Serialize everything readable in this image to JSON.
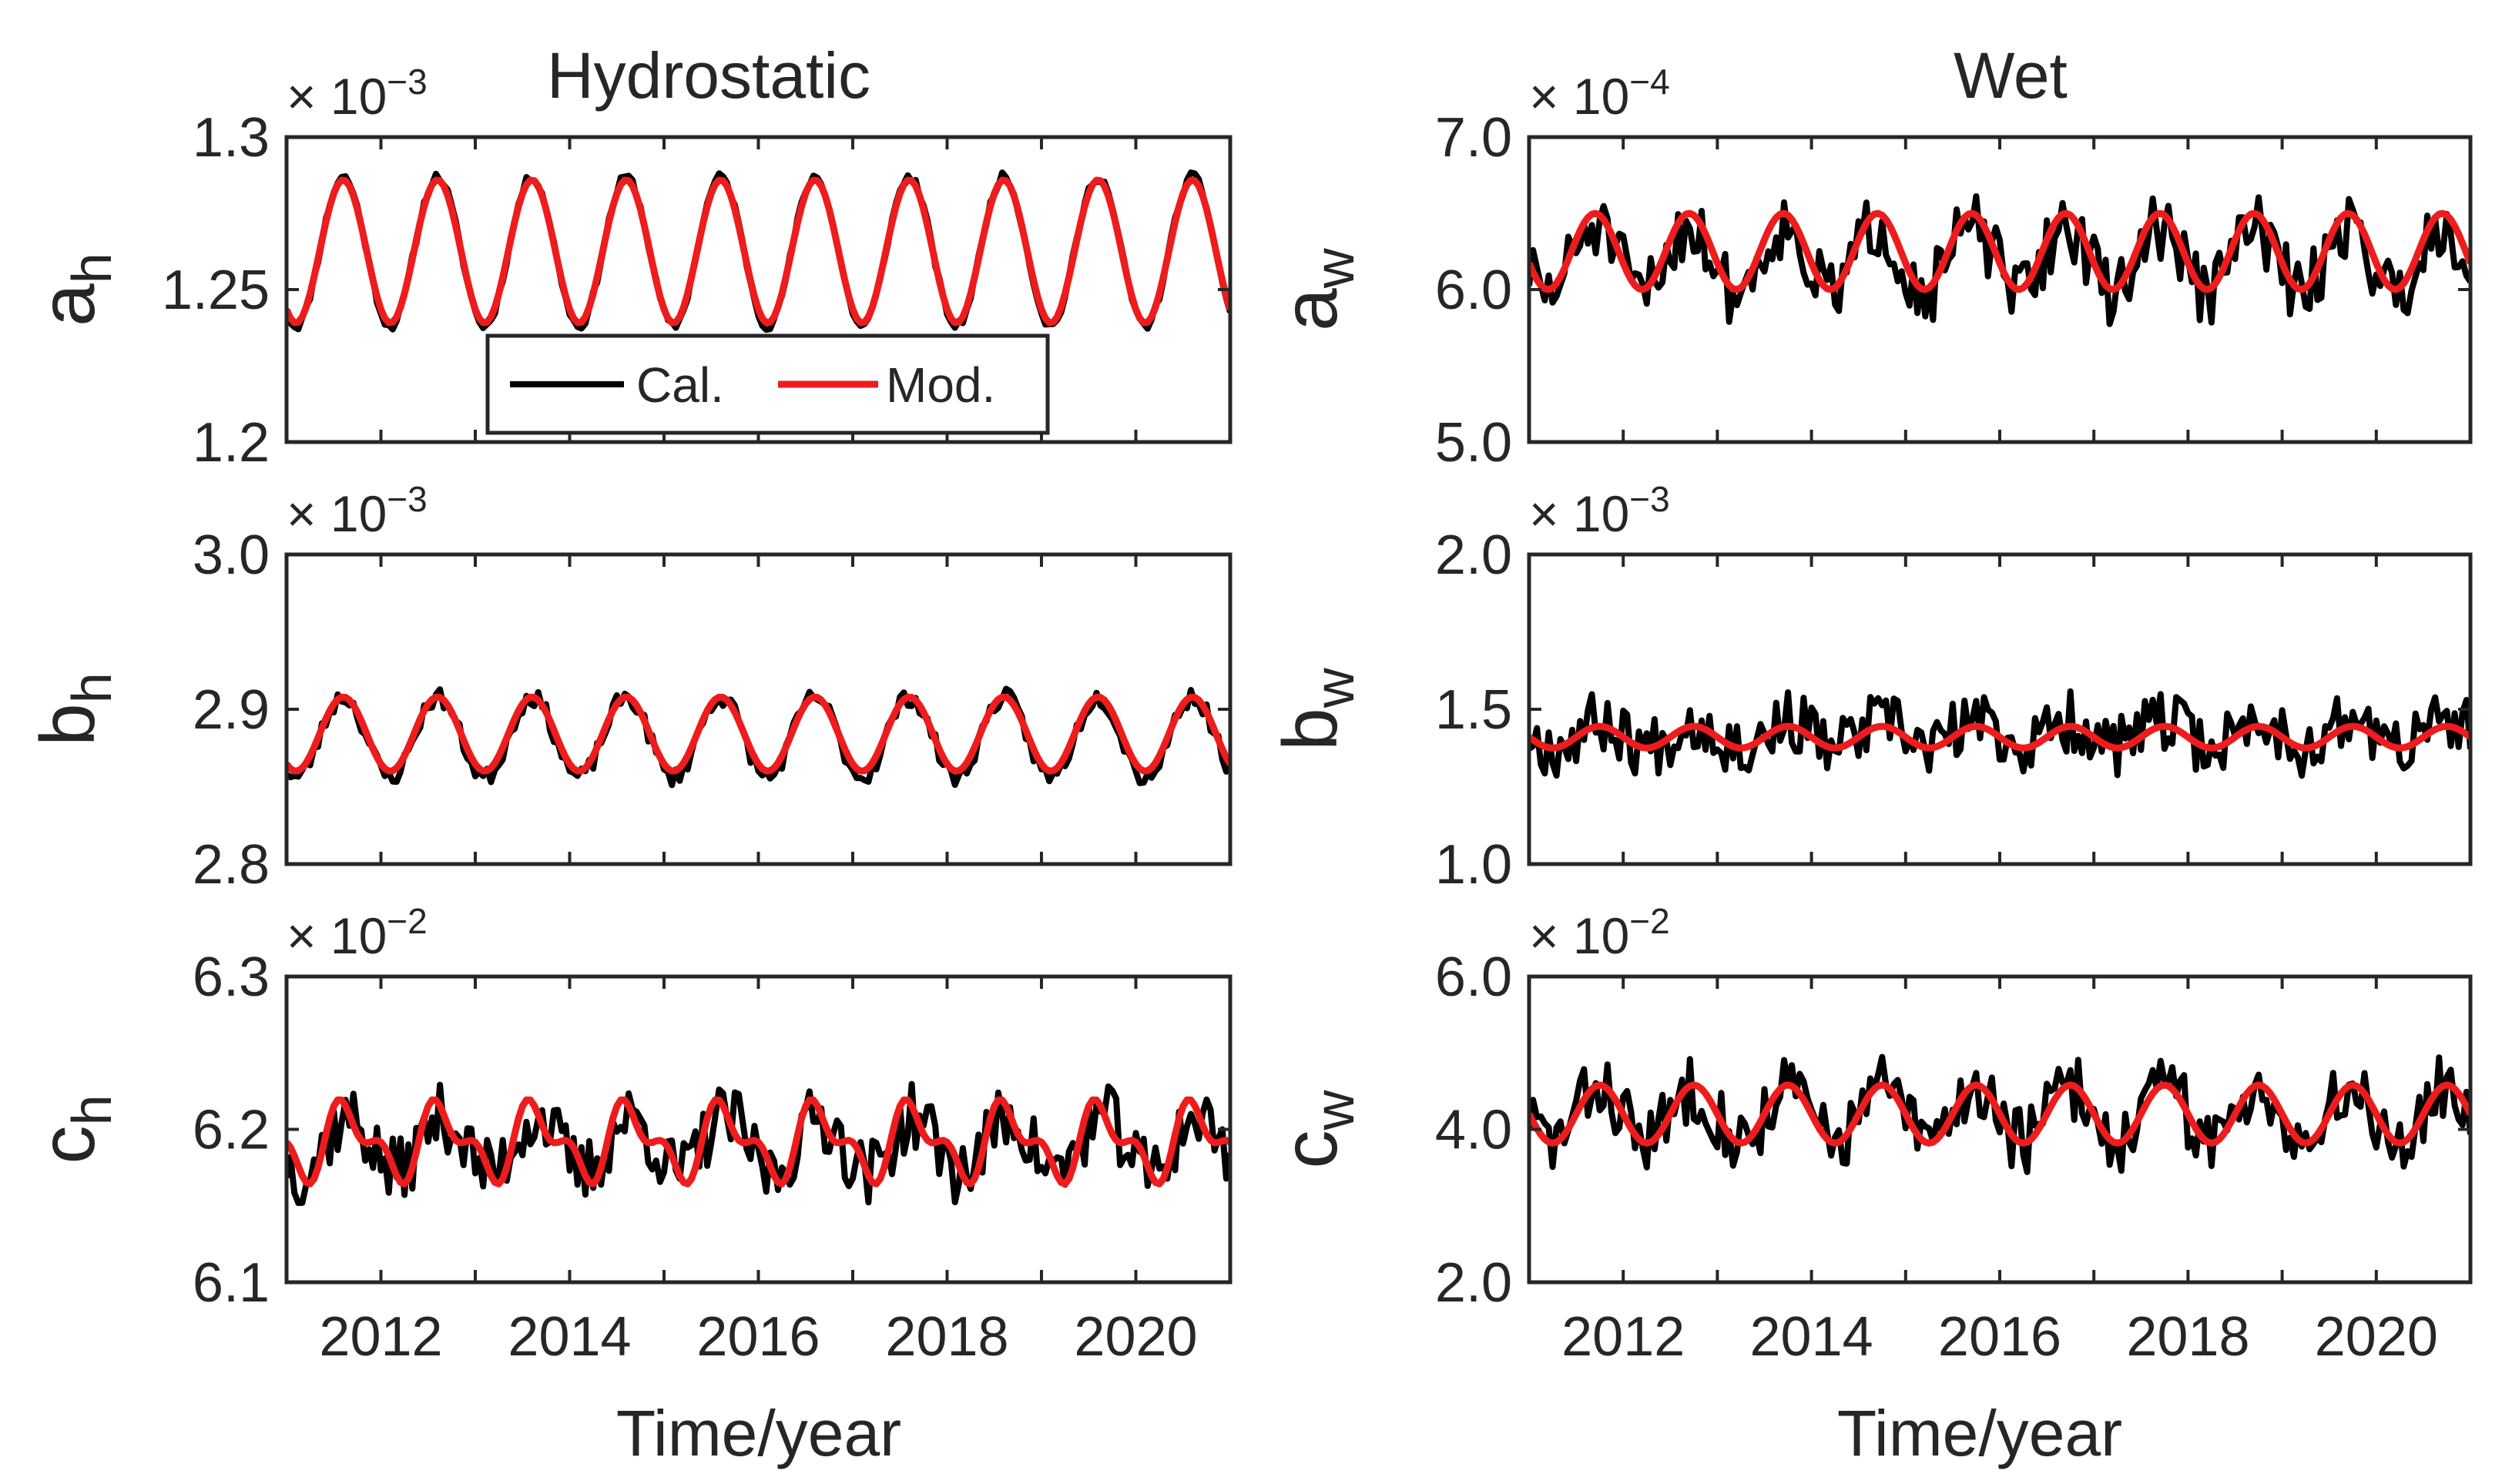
{
  "colors": {
    "cal": "#000000",
    "mod": "#ee1c1c",
    "axis": "#262626"
  },
  "titles": {
    "left": "Hydrostatic",
    "right": "Wet"
  },
  "xlabel": "Time/year",
  "legend": {
    "cal": "Cal.",
    "mod": "Mod.",
    "placement": "lower-center (panel a_h)"
  },
  "chart_data": [
    {
      "type": "line",
      "id": "ah",
      "column": "left",
      "ylabel": "a",
      "ylabel_sub": "h",
      "exponent_base": "× 10",
      "exponent_power": "−3",
      "xlim": [
        2011.0,
        2021.0
      ],
      "ylim": [
        1.2,
        1.3
      ],
      "xticks": [
        2012,
        2014,
        2016,
        2018,
        2020
      ],
      "yticks": [
        1.2,
        1.25,
        1.3
      ],
      "ytick_labels": [
        "1.2",
        "1.25",
        "1.3"
      ],
      "series": [
        {
          "name": "Cal.",
          "model": {
            "mean": 1.2625,
            "amp": 0.0245,
            "phase": 0.35,
            "rough": 0.0015,
            "seed": 11
          }
        },
        {
          "name": "Mod.",
          "model": {
            "mean": 1.2625,
            "amp": 0.0235,
            "phase": 0.35,
            "rough": 0,
            "seed": 0
          }
        }
      ]
    },
    {
      "type": "line",
      "id": "bh",
      "column": "left",
      "ylabel": "b",
      "ylabel_sub": "h",
      "exponent_base": "× 10",
      "exponent_power": "−3",
      "xlim": [
        2011.0,
        2021.0
      ],
      "ylim": [
        2.8,
        3.0
      ],
      "xticks": [
        2012,
        2014,
        2016,
        2018,
        2020
      ],
      "yticks": [
        2.8,
        2.9,
        3.0
      ],
      "ytick_labels": [
        "2.8",
        "2.9",
        "3.0"
      ],
      "series": [
        {
          "name": "Cal.",
          "model": {
            "mean": 2.882,
            "amp": 0.026,
            "phase": 0.35,
            "rough": 0.006,
            "seed": 23
          }
        },
        {
          "name": "Mod.",
          "model": {
            "mean": 2.884,
            "amp": 0.024,
            "phase": 0.35,
            "rough": 0,
            "seed": 0
          }
        }
      ]
    },
    {
      "type": "line",
      "id": "ch",
      "column": "left",
      "ylabel": "c",
      "ylabel_sub": "h",
      "exponent_base": "× 10",
      "exponent_power": "−2",
      "xlim": [
        2011.0,
        2021.0
      ],
      "ylim": [
        6.1,
        6.3
      ],
      "xticks": [
        2012,
        2014,
        2016,
        2018,
        2020
      ],
      "yticks": [
        6.1,
        6.2,
        6.3
      ],
      "ytick_labels": [
        "6.1",
        "6.2",
        "6.3"
      ],
      "series": [
        {
          "name": "Cal.",
          "model": {
            "mean": 6.19,
            "amp": 0.018,
            "phase": 0.4,
            "rough": 0.022,
            "seed": 37
          }
        },
        {
          "name": "Mod.",
          "model": {
            "mean": 6.192,
            "amp": 0.02,
            "phase": 0.4,
            "rough": 0,
            "seed": 0,
            "semi": 0.6
          }
        }
      ]
    },
    {
      "type": "line",
      "id": "aw",
      "column": "right",
      "ylabel": "a",
      "ylabel_sub": "w",
      "exponent_base": "× 10",
      "exponent_power": "−4",
      "xlim": [
        2011.0,
        2021.0
      ],
      "ylim": [
        5.0,
        7.0
      ],
      "xticks": [
        2012,
        2014,
        2016,
        2018,
        2020
      ],
      "yticks": [
        5.0,
        6.0,
        7.0
      ],
      "ytick_labels": [
        "5.0",
        "6.0",
        "7.0"
      ],
      "series": [
        {
          "name": "Cal.",
          "model": {
            "mean": 6.2,
            "amp": 0.22,
            "phase": 0.45,
            "rough": 0.22,
            "seed": 51
          }
        },
        {
          "name": "Mod.",
          "model": {
            "mean": 6.25,
            "amp": 0.25,
            "phase": 0.45,
            "rough": 0,
            "seed": 0
          }
        }
      ]
    },
    {
      "type": "line",
      "id": "bw",
      "column": "right",
      "ylabel": "b",
      "ylabel_sub": "w",
      "exponent_base": "× 10",
      "exponent_power": "−3",
      "xlim": [
        2011.0,
        2021.0
      ],
      "ylim": [
        1.0,
        2.0
      ],
      "xticks": [
        2012,
        2014,
        2016,
        2018,
        2020
      ],
      "yticks": [
        1.0,
        1.5,
        2.0
      ],
      "ytick_labels": [
        "1.0",
        "1.5",
        "2.0"
      ],
      "series": [
        {
          "name": "Cal.",
          "model": {
            "mean": 1.42,
            "amp": 0.04,
            "phase": 0.5,
            "rough": 0.1,
            "seed": 67
          }
        },
        {
          "name": "Mod.",
          "model": {
            "mean": 1.41,
            "amp": 0.035,
            "phase": 0.5,
            "rough": 0,
            "seed": 0
          }
        }
      ]
    },
    {
      "type": "line",
      "id": "cw",
      "column": "right",
      "ylabel": "c",
      "ylabel_sub": "w",
      "exponent_base": "× 10",
      "exponent_power": "−2",
      "xlim": [
        2011.0,
        2021.0
      ],
      "ylim": [
        2.0,
        6.0
      ],
      "xticks": [
        2012,
        2014,
        2016,
        2018,
        2020
      ],
      "yticks": [
        2.0,
        4.0,
        6.0
      ],
      "ytick_labels": [
        "2.0",
        "4.0",
        "6.0"
      ],
      "series": [
        {
          "name": "Cal.",
          "model": {
            "mean": 4.2,
            "amp": 0.35,
            "phase": 0.5,
            "rough": 0.45,
            "seed": 83
          }
        },
        {
          "name": "Mod.",
          "model": {
            "mean": 4.2,
            "amp": 0.38,
            "phase": 0.5,
            "rough": 0,
            "seed": 0
          }
        }
      ]
    }
  ]
}
